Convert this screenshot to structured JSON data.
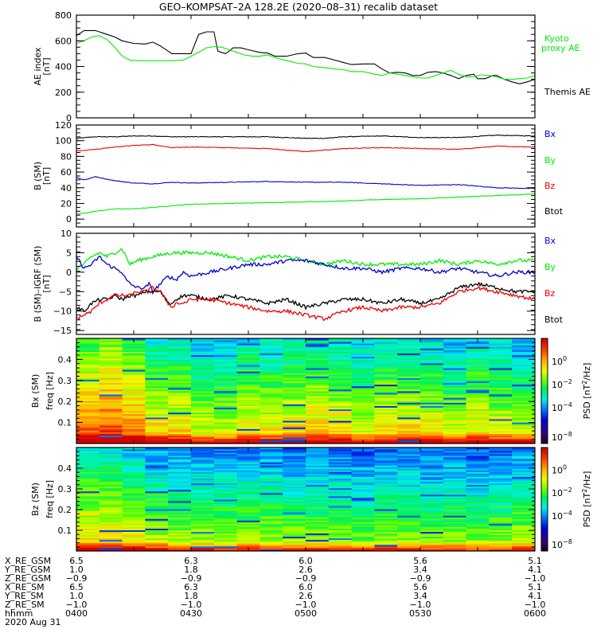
{
  "title": "GEO–KOMPSAT–2A 128.2E (2020–08–31) recalib dataset",
  "colors": {
    "black": "#000000",
    "green": "#00ee00",
    "red": "#ee0000",
    "blue": "#0000cc"
  },
  "chart_data": [
    {
      "type": "line",
      "panel": "ae-index",
      "ylabel": "AE index",
      "yunit": "[nT]",
      "ylim": [
        0,
        800
      ],
      "yticks": [
        "0",
        "200",
        "400",
        "600",
        "800"
      ],
      "xlim": [
        0,
        120
      ],
      "x_unit": "minutes since 0400 UT",
      "legend": [
        {
          "label": "Kyoto\nproxy AE",
          "line1": "Kyoto",
          "line2": "proxy AE",
          "color": "#00ee00"
        },
        {
          "label": "Themis AE",
          "color": "#000000"
        }
      ],
      "legend_placement": "right",
      "series": [
        {
          "name": "Themis AE",
          "color": "#000000",
          "x": [
            0,
            2,
            5,
            8,
            10,
            12,
            15,
            18,
            20,
            22,
            25,
            28,
            30,
            32,
            34,
            36,
            37,
            38,
            39,
            40,
            41,
            43,
            45,
            48,
            50,
            52,
            55,
            58,
            60,
            62,
            65,
            67,
            70,
            72,
            75,
            78,
            80,
            82,
            84,
            86,
            88,
            90,
            92,
            94,
            96,
            98,
            100,
            102,
            104,
            105,
            107,
            109,
            110,
            112,
            114,
            116,
            118,
            120
          ],
          "y": [
            640,
            680,
            680,
            650,
            630,
            600,
            580,
            575,
            590,
            560,
            500,
            500,
            500,
            650,
            670,
            670,
            520,
            510,
            500,
            520,
            545,
            545,
            530,
            510,
            505,
            480,
            480,
            500,
            505,
            470,
            470,
            455,
            430,
            415,
            420,
            420,
            380,
            350,
            355,
            350,
            330,
            330,
            355,
            360,
            350,
            330,
            305,
            330,
            340,
            305,
            305,
            330,
            330,
            300,
            280,
            265,
            280,
            300
          ]
        },
        {
          "name": "Kyoto proxy AE",
          "color": "#00ee00",
          "x": [
            0,
            2,
            4,
            6,
            8,
            10,
            12,
            14,
            16,
            18,
            20,
            22,
            25,
            28,
            30,
            32,
            34,
            36,
            38,
            40,
            42,
            44,
            46,
            48,
            50,
            52,
            55,
            58,
            60,
            62,
            65,
            68,
            70,
            72,
            75,
            78,
            80,
            82,
            84,
            86,
            88,
            90,
            92,
            94,
            96,
            98,
            100,
            102,
            104,
            106,
            108,
            110,
            112,
            114,
            116,
            118,
            120
          ],
          "y": [
            580,
            600,
            630,
            640,
            610,
            550,
            480,
            450,
            445,
            445,
            445,
            445,
            445,
            450,
            480,
            510,
            545,
            555,
            550,
            530,
            510,
            490,
            480,
            480,
            490,
            470,
            445,
            425,
            420,
            400,
            390,
            380,
            375,
            360,
            360,
            340,
            330,
            350,
            340,
            330,
            320,
            310,
            310,
            330,
            350,
            370,
            340,
            320,
            320,
            335,
            330,
            320,
            300,
            300,
            305,
            310,
            330
          ]
        }
      ]
    },
    {
      "type": "line",
      "panel": "b-sm",
      "ylabel": "B (SM)",
      "yunit": "[nT]",
      "ylim": [
        -10,
        120
      ],
      "yticks": [
        "0",
        "20",
        "40",
        "60",
        "80",
        "100",
        "120"
      ],
      "xlim": [
        0,
        120
      ],
      "legend": [
        {
          "label": "Bx",
          "color": "#0000cc"
        },
        {
          "label": "By",
          "color": "#00ee00"
        },
        {
          "label": "Bz",
          "color": "#ee0000"
        },
        {
          "label": "Btot",
          "color": "#000000"
        }
      ],
      "legend_placement": "right",
      "series": [
        {
          "name": "Btot",
          "color": "#000000",
          "x": [
            0,
            5,
            10,
            15,
            20,
            25,
            30,
            40,
            50,
            60,
            65,
            70,
            80,
            90,
            100,
            110,
            120
          ],
          "y": [
            103,
            105,
            105,
            106,
            106,
            105,
            105,
            105,
            105,
            103,
            103,
            105,
            106,
            104,
            104,
            107,
            106
          ]
        },
        {
          "name": "Bz",
          "color": "#ee0000",
          "x": [
            0,
            5,
            10,
            15,
            20,
            25,
            30,
            40,
            50,
            60,
            65,
            70,
            80,
            90,
            100,
            110,
            120
          ],
          "y": [
            87,
            89,
            92,
            94,
            95,
            91,
            92,
            91,
            90,
            86,
            88,
            90,
            91,
            90,
            89,
            93,
            92
          ]
        },
        {
          "name": "Bx",
          "color": "#0000cc",
          "x": [
            0,
            2,
            5,
            8,
            10,
            15,
            20,
            25,
            30,
            40,
            50,
            60,
            70,
            80,
            90,
            100,
            110,
            120
          ],
          "y": [
            53,
            50,
            54,
            51,
            49,
            46,
            45,
            47,
            46,
            47,
            48,
            47,
            47,
            45,
            43,
            44,
            40,
            39
          ]
        },
        {
          "name": "By",
          "color": "#00ee00",
          "x": [
            0,
            5,
            10,
            15,
            20,
            25,
            30,
            40,
            50,
            60,
            70,
            80,
            90,
            100,
            110,
            120
          ],
          "y": [
            6,
            10,
            13,
            13,
            15,
            17,
            19,
            20,
            21,
            22,
            23,
            25,
            26,
            28,
            30,
            32
          ]
        }
      ]
    },
    {
      "type": "line",
      "panel": "b-sm-minus-igrf",
      "ylabel": "B (SM)–IGRF (SM)",
      "yunit": "[nT]",
      "ylim": [
        -16,
        10
      ],
      "yticks": [
        "−15",
        "−10",
        "−5",
        "0",
        "5",
        "10"
      ],
      "xlim": [
        0,
        120
      ],
      "legend": [
        {
          "label": "Bx",
          "color": "#0000cc"
        },
        {
          "label": "By",
          "color": "#00ee00"
        },
        {
          "label": "Bz",
          "color": "#ee0000"
        },
        {
          "label": "Btot",
          "color": "#000000"
        }
      ],
      "legend_placement": "right",
      "series": [
        {
          "name": "By",
          "color": "#00ee00",
          "x": [
            0,
            2,
            4,
            6,
            8,
            10,
            12,
            13,
            14,
            16,
            20,
            25,
            30,
            35,
            40,
            45,
            50,
            55,
            60,
            65,
            70,
            75,
            80,
            85,
            90,
            95,
            100,
            105,
            110,
            115,
            120
          ],
          "y": [
            1,
            2,
            4,
            5,
            4,
            5,
            6,
            4,
            2,
            3,
            4,
            5,
            5,
            5,
            4,
            3,
            4,
            4,
            3,
            2,
            3,
            2,
            2,
            2,
            2,
            3,
            2,
            3,
            2,
            3,
            3
          ]
        },
        {
          "name": "Bx",
          "color": "#0000cc",
          "x": [
            0,
            2,
            4,
            6,
            8,
            10,
            12,
            13,
            14,
            16,
            18,
            19,
            20,
            22,
            24,
            26,
            28,
            30,
            35,
            40,
            45,
            50,
            55,
            60,
            65,
            70,
            75,
            80,
            85,
            90,
            95,
            100,
            105,
            110,
            115,
            120
          ],
          "y": [
            4,
            1,
            2,
            4,
            2,
            1,
            0,
            -2,
            -3,
            -4,
            -4,
            -3,
            -5,
            -3,
            -1,
            -2,
            0,
            -1,
            0,
            1,
            2,
            2,
            3,
            3,
            2,
            1,
            1,
            0,
            1,
            1,
            0,
            1,
            0,
            -1,
            0,
            0
          ]
        },
        {
          "name": "Btot",
          "color": "#000000",
          "x": [
            0,
            2,
            4,
            6,
            8,
            10,
            12,
            14,
            16,
            18,
            20,
            22,
            24,
            25,
            26,
            28,
            30,
            35,
            40,
            45,
            50,
            55,
            60,
            65,
            70,
            75,
            80,
            85,
            90,
            95,
            100,
            105,
            110,
            115,
            120
          ],
          "y": [
            -9,
            -10,
            -8,
            -7,
            -7,
            -6,
            -7,
            -6,
            -6,
            -5,
            -5,
            -5,
            -8,
            -8,
            -7,
            -6,
            -6,
            -7,
            -6,
            -7,
            -8,
            -7,
            -9,
            -8,
            -7,
            -7,
            -8,
            -7,
            -8,
            -7,
            -4,
            -3,
            -4,
            -5,
            -5
          ]
        },
        {
          "name": "Bz",
          "color": "#ee0000",
          "x": [
            0,
            2,
            4,
            6,
            8,
            10,
            12,
            14,
            16,
            18,
            20,
            22,
            24,
            25,
            26,
            28,
            30,
            35,
            40,
            45,
            50,
            55,
            60,
            65,
            70,
            75,
            80,
            85,
            90,
            95,
            100,
            105,
            110,
            115,
            120
          ],
          "y": [
            -12,
            -11,
            -10,
            -8,
            -7,
            -6,
            -6,
            -6,
            -5,
            -5,
            -4,
            -5,
            -8,
            -9,
            -8,
            -8,
            -7,
            -7,
            -8,
            -9,
            -10,
            -10,
            -11,
            -12,
            -10,
            -9,
            -10,
            -9,
            -9,
            -8,
            -5,
            -4,
            -5,
            -6,
            -7
          ]
        }
      ]
    },
    {
      "type": "heatmap",
      "panel": "bx-spectrogram",
      "ylabel": "Bx (SM)",
      "ylabel2": "freq",
      "yunit": "[Hz]",
      "ylim": [
        0,
        0.5
      ],
      "yticks": [
        "0.1",
        "0.2",
        "0.3",
        "0.4"
      ],
      "xlim": [
        0,
        120
      ],
      "colorbar": {
        "label": "PSD",
        "unit": "[nT²/Hz]",
        "unit_base": "[nT",
        "unit_sup": "2",
        "unit_rest": "/Hz]",
        "ticks": [
          {
            "base": "10",
            "exp": "0"
          },
          {
            "base": "10",
            "exp": "−2"
          },
          {
            "base": "10",
            "exp": "−4"
          },
          {
            "base": "10",
            "exp": "−8"
          }
        ]
      },
      "x_columns": 20,
      "column_level_profile": [
        0.62,
        0.66,
        0.6,
        0.5,
        0.5,
        0.45,
        0.44,
        0.5,
        0.48,
        0.5,
        0.52,
        0.5,
        0.45,
        0.5,
        0.5,
        0.48,
        0.44,
        0.5,
        0.46,
        0.44
      ]
    },
    {
      "type": "heatmap",
      "panel": "bz-spectrogram",
      "ylabel": "Bz (SM)",
      "ylabel2": "freq",
      "yunit": "[Hz]",
      "ylim": [
        0,
        0.5
      ],
      "yticks": [
        "0.1",
        "0.2",
        "0.3",
        "0.4"
      ],
      "xlim": [
        0,
        120
      ],
      "colorbar": {
        "label": "PSD",
        "unit": "[nT²/Hz]",
        "unit_base": "[nT",
        "unit_sup": "2",
        "unit_rest": "/Hz]",
        "ticks": [
          {
            "base": "10",
            "exp": "0"
          },
          {
            "base": "10",
            "exp": "−2"
          },
          {
            "base": "10",
            "exp": "−4"
          },
          {
            "base": "10",
            "exp": "−8"
          }
        ]
      },
      "x_columns": 20,
      "column_level_profile": [
        0.5,
        0.5,
        0.46,
        0.42,
        0.4,
        0.4,
        0.38,
        0.4,
        0.4,
        0.38,
        0.38,
        0.38,
        0.36,
        0.38,
        0.38,
        0.36,
        0.38,
        0.36,
        0.38,
        0.4
      ]
    }
  ],
  "ephemeris": {
    "row_labels": [
      "X_RE_GSM",
      "Y_RE_GSM",
      "Z_RE_GSM",
      "X_RE_SM",
      "Y_RE_SM",
      "Z_RE_SM",
      "hhmm"
    ],
    "columns": [
      [
        "6.5",
        "1.0",
        "−0.9",
        "6.5",
        "1.0",
        "−1.0",
        "0400"
      ],
      [
        "6.3",
        "1.8",
        "−0.9",
        "6.3",
        "1.8",
        "−1.0",
        "0430"
      ],
      [
        "6.0",
        "2.6",
        "−0.9",
        "6.0",
        "2.6",
        "−1.0",
        "0500"
      ],
      [
        "5.6",
        "3.4",
        "−0.9",
        "5.6",
        "3.4",
        "−1.0",
        "0530"
      ],
      [
        "5.1",
        "4.1",
        "−1.0",
        "5.1",
        "4.1",
        "−1.0",
        "0600"
      ]
    ],
    "date": "2020 Aug 31"
  }
}
